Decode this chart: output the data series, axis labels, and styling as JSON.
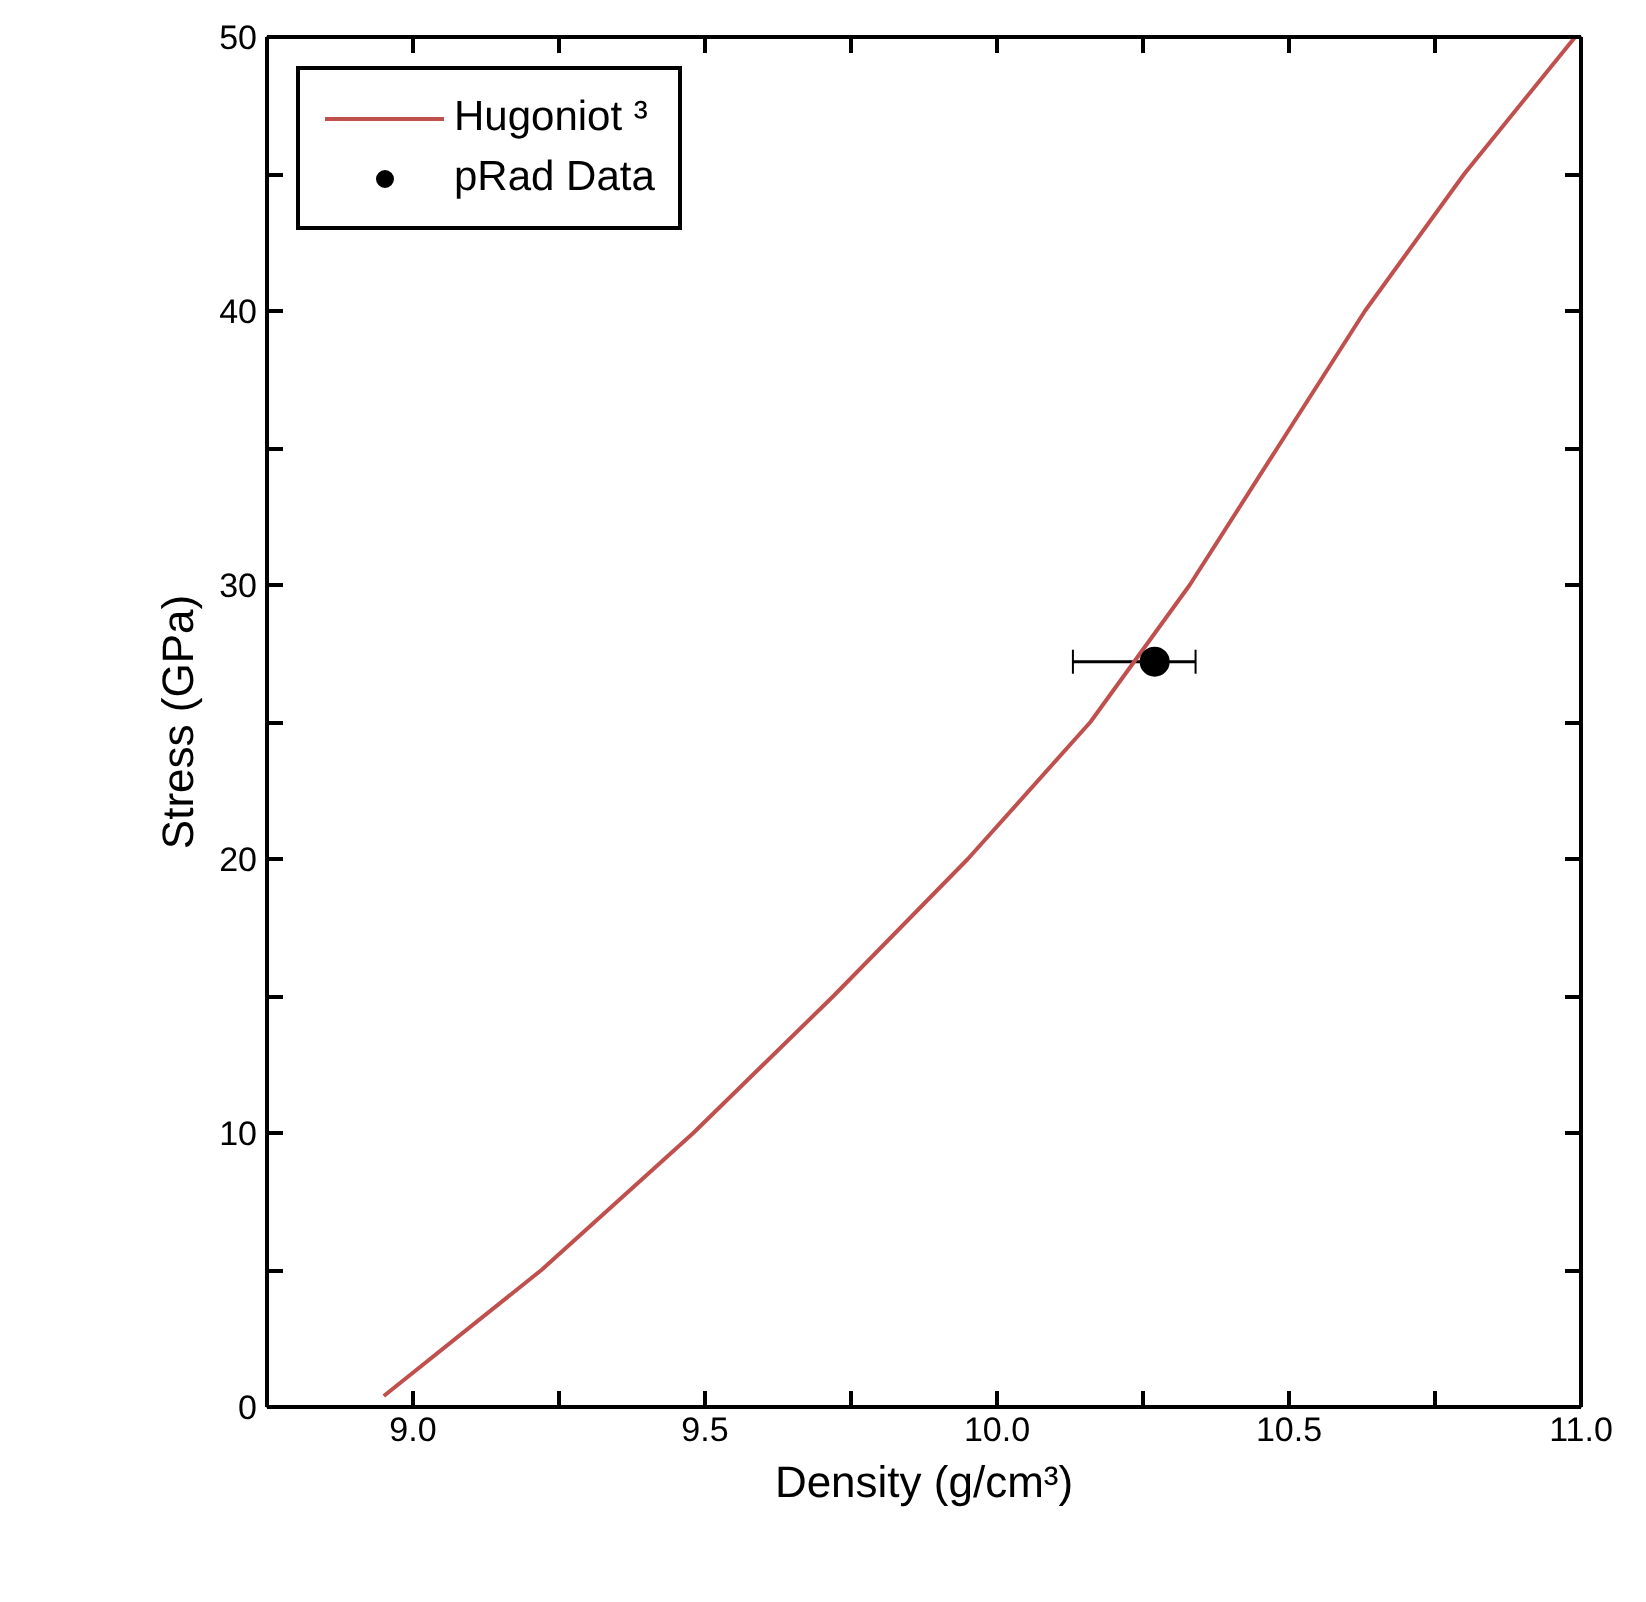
{
  "chart_data": {
    "type": "line",
    "xlabel": "Density (g/cm³)",
    "ylabel": "Stress (GPa)",
    "xlim": [
      8.75,
      11.0
    ],
    "xticks": [
      {
        "value": 9.0,
        "label": "9.0"
      },
      {
        "value": 9.25,
        "label": null
      },
      {
        "value": 9.5,
        "label": "9.5"
      },
      {
        "value": 9.75,
        "label": null
      },
      {
        "value": 10.0,
        "label": "10.0"
      },
      {
        "value": 10.25,
        "label": null
      },
      {
        "value": 10.5,
        "label": "10.5"
      },
      {
        "value": 10.75,
        "label": null
      },
      {
        "value": 11.0,
        "label": "11.0"
      }
    ],
    "ylim": [
      0,
      50
    ],
    "yticks": [
      0,
      {
        "value": 5,
        "label": null
      },
      10,
      {
        "value": 15,
        "label": null
      },
      20,
      {
        "value": 25,
        "label": null
      },
      30,
      {
        "value": 35,
        "label": null
      },
      40,
      {
        "value": 45,
        "label": null
      },
      50
    ],
    "series": [
      {
        "name": "Hugoniot ³",
        "color": "#c0504d",
        "line_style": "solid",
        "marker": "none",
        "x": [
          8.95,
          9.22,
          9.48,
          9.72,
          9.95,
          10.16,
          10.33,
          10.48,
          10.63,
          10.8,
          10.99
        ],
        "values": [
          0.4,
          5,
          10,
          15,
          20,
          25,
          30,
          35,
          40,
          45,
          50
        ]
      },
      {
        "name": "pRad Data",
        "type": "scatter",
        "color": "#000000",
        "marker": "circle",
        "x": [
          10.27
        ],
        "values": [
          27.2
        ],
        "xerrors": [
          [
            10.13,
            10.34
          ]
        ]
      }
    ],
    "legend": "top left",
    "grid": false
  }
}
